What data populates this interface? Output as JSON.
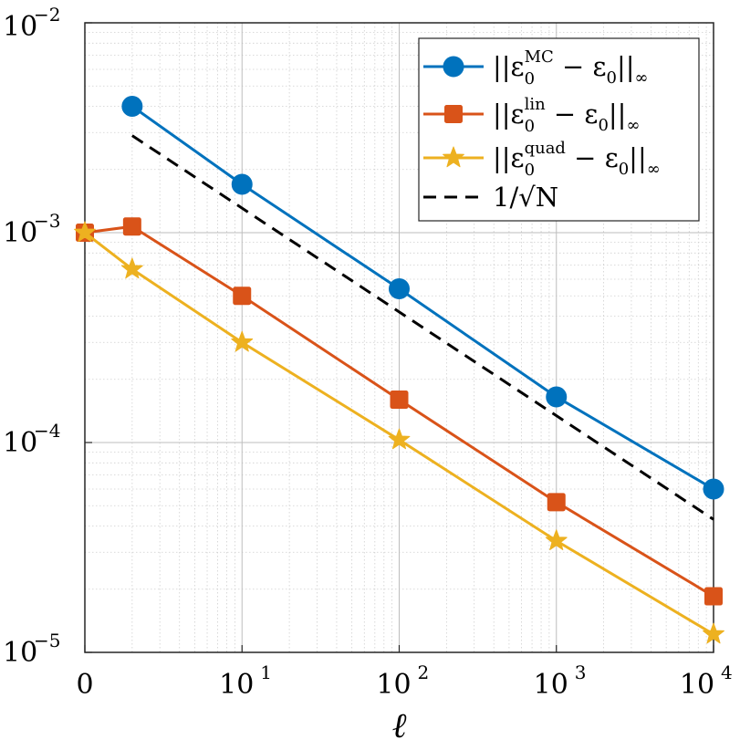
{
  "chart_data": {
    "type": "line",
    "x_scale": "log-with-zero",
    "y_scale": "log",
    "xlabel": "ℓ",
    "ylabel": "",
    "ylim": [
      1e-05,
      0.01
    ],
    "grid": true,
    "legend_position": "top-right",
    "x": [
      0,
      2,
      10,
      100,
      1000,
      10000
    ],
    "x_ticks": [
      {
        "value": 0,
        "base": "0",
        "exp": ""
      },
      {
        "value": 10,
        "base": "10",
        "exp": "1"
      },
      {
        "value": 100,
        "base": "10",
        "exp": "2"
      },
      {
        "value": 1000,
        "base": "10",
        "exp": "3"
      },
      {
        "value": 10000,
        "base": "10",
        "exp": "4"
      }
    ],
    "y_ticks": [
      {
        "value": 1e-05,
        "base": "10",
        "exp": "−5"
      },
      {
        "value": 0.0001,
        "base": "10",
        "exp": "−4"
      },
      {
        "value": 0.001,
        "base": "10",
        "exp": "−3"
      },
      {
        "value": 0.01,
        "base": "10",
        "exp": "−2"
      }
    ],
    "series": [
      {
        "name": "||ε0MC − ε0||∞",
        "label_pre": "||ε",
        "label_sub": "0",
        "label_sup": "MC",
        "label_post": " − ε",
        "label_sub2": "0",
        "label_end": "||",
        "label_sub3": "∞",
        "color": "#0072BD",
        "marker": "circle",
        "line": "solid",
        "x": [
          2,
          10,
          100,
          1000,
          10000
        ],
        "values": [
          0.004,
          0.0017,
          0.00054,
          0.000165,
          6e-05
        ]
      },
      {
        "name": "||ε0lin − ε0||∞",
        "label_pre": "||ε",
        "label_sub": "0",
        "label_sup": "lin",
        "label_post": " − ε",
        "label_sub2": "0",
        "label_end": "||",
        "label_sub3": "∞",
        "color": "#D95319",
        "marker": "square",
        "line": "solid",
        "x": [
          0,
          2,
          10,
          100,
          1000,
          10000
        ],
        "values": [
          0.001,
          0.00107,
          0.0005,
          0.00016,
          5.2e-05,
          1.85e-05
        ]
      },
      {
        "name": "||ε0quad − ε0||∞",
        "label_pre": "||ε",
        "label_sub": "0",
        "label_sup": "quad",
        "label_post": " − ε",
        "label_sub2": "0",
        "label_end": "||",
        "label_sub3": "∞",
        "color": "#EDB120",
        "marker": "star",
        "line": "solid",
        "x": [
          0,
          2,
          10,
          100,
          1000,
          10000
        ],
        "values": [
          0.001,
          0.00067,
          0.0003,
          0.000103,
          3.4e-05,
          1.22e-05
        ]
      },
      {
        "name": "1/√N",
        "label_plain": "1/√N",
        "color": "#000000",
        "marker": "none",
        "line": "dashed",
        "x": [
          2,
          10000
        ],
        "values": [
          0.0029,
          4.3e-05
        ]
      }
    ]
  }
}
